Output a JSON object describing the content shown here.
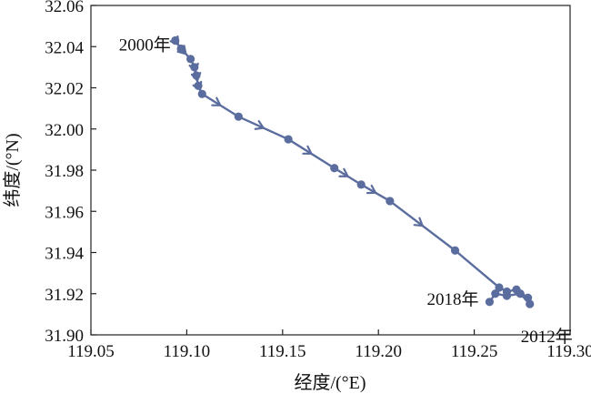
{
  "chart_data": {
    "type": "line",
    "title": "",
    "xlabel": "经度/(°E)",
    "ylabel": "纬度/(°N)",
    "xlim": [
      119.05,
      119.3
    ],
    "ylim": [
      31.9,
      32.06
    ],
    "x_ticks": [
      "119.05",
      "119.10",
      "119.15",
      "119.20",
      "119.25",
      "119.30"
    ],
    "y_ticks": [
      "31.90",
      "31.92",
      "31.94",
      "31.96",
      "31.98",
      "32.00",
      "32.02",
      "32.04",
      "32.06"
    ],
    "grid": false,
    "legend": "none",
    "color": "#5b6d9e",
    "series": [
      {
        "name": "",
        "points": [
          {
            "x": 119.094,
            "y": 32.043
          },
          {
            "x": 119.097,
            "y": 32.039
          },
          {
            "x": 119.102,
            "y": 32.034
          },
          {
            "x": 119.104,
            "y": 32.03
          },
          {
            "x": 119.105,
            "y": 32.026
          },
          {
            "x": 119.106,
            "y": 32.021
          },
          {
            "x": 119.108,
            "y": 32.017
          },
          {
            "x": 119.127,
            "y": 32.006
          },
          {
            "x": 119.153,
            "y": 31.995
          },
          {
            "x": 119.177,
            "y": 31.981
          },
          {
            "x": 119.191,
            "y": 31.973
          },
          {
            "x": 119.206,
            "y": 31.965
          },
          {
            "x": 119.24,
            "y": 31.941
          },
          {
            "x": 119.263,
            "y": 31.923
          },
          {
            "x": 119.267,
            "y": 31.921
          },
          {
            "x": 119.272,
            "y": 31.922
          },
          {
            "x": 119.278,
            "y": 31.918
          },
          {
            "x": 119.279,
            "y": 31.915
          },
          {
            "x": 119.274,
            "y": 31.92
          },
          {
            "x": 119.267,
            "y": 31.919
          },
          {
            "x": 119.261,
            "y": 31.92
          },
          {
            "x": 119.258,
            "y": 31.916
          }
        ],
        "arrows_after": [
          1,
          2,
          4,
          5,
          6,
          7,
          8,
          9,
          10,
          11,
          12
        ]
      }
    ],
    "annotations": [
      {
        "text": "2000年",
        "x": 119.094,
        "y": 32.043
      },
      {
        "text": "2018年",
        "x": 119.258,
        "y": 31.916
      },
      {
        "text": "2012年",
        "x": 119.279,
        "y": 31.915
      }
    ]
  }
}
